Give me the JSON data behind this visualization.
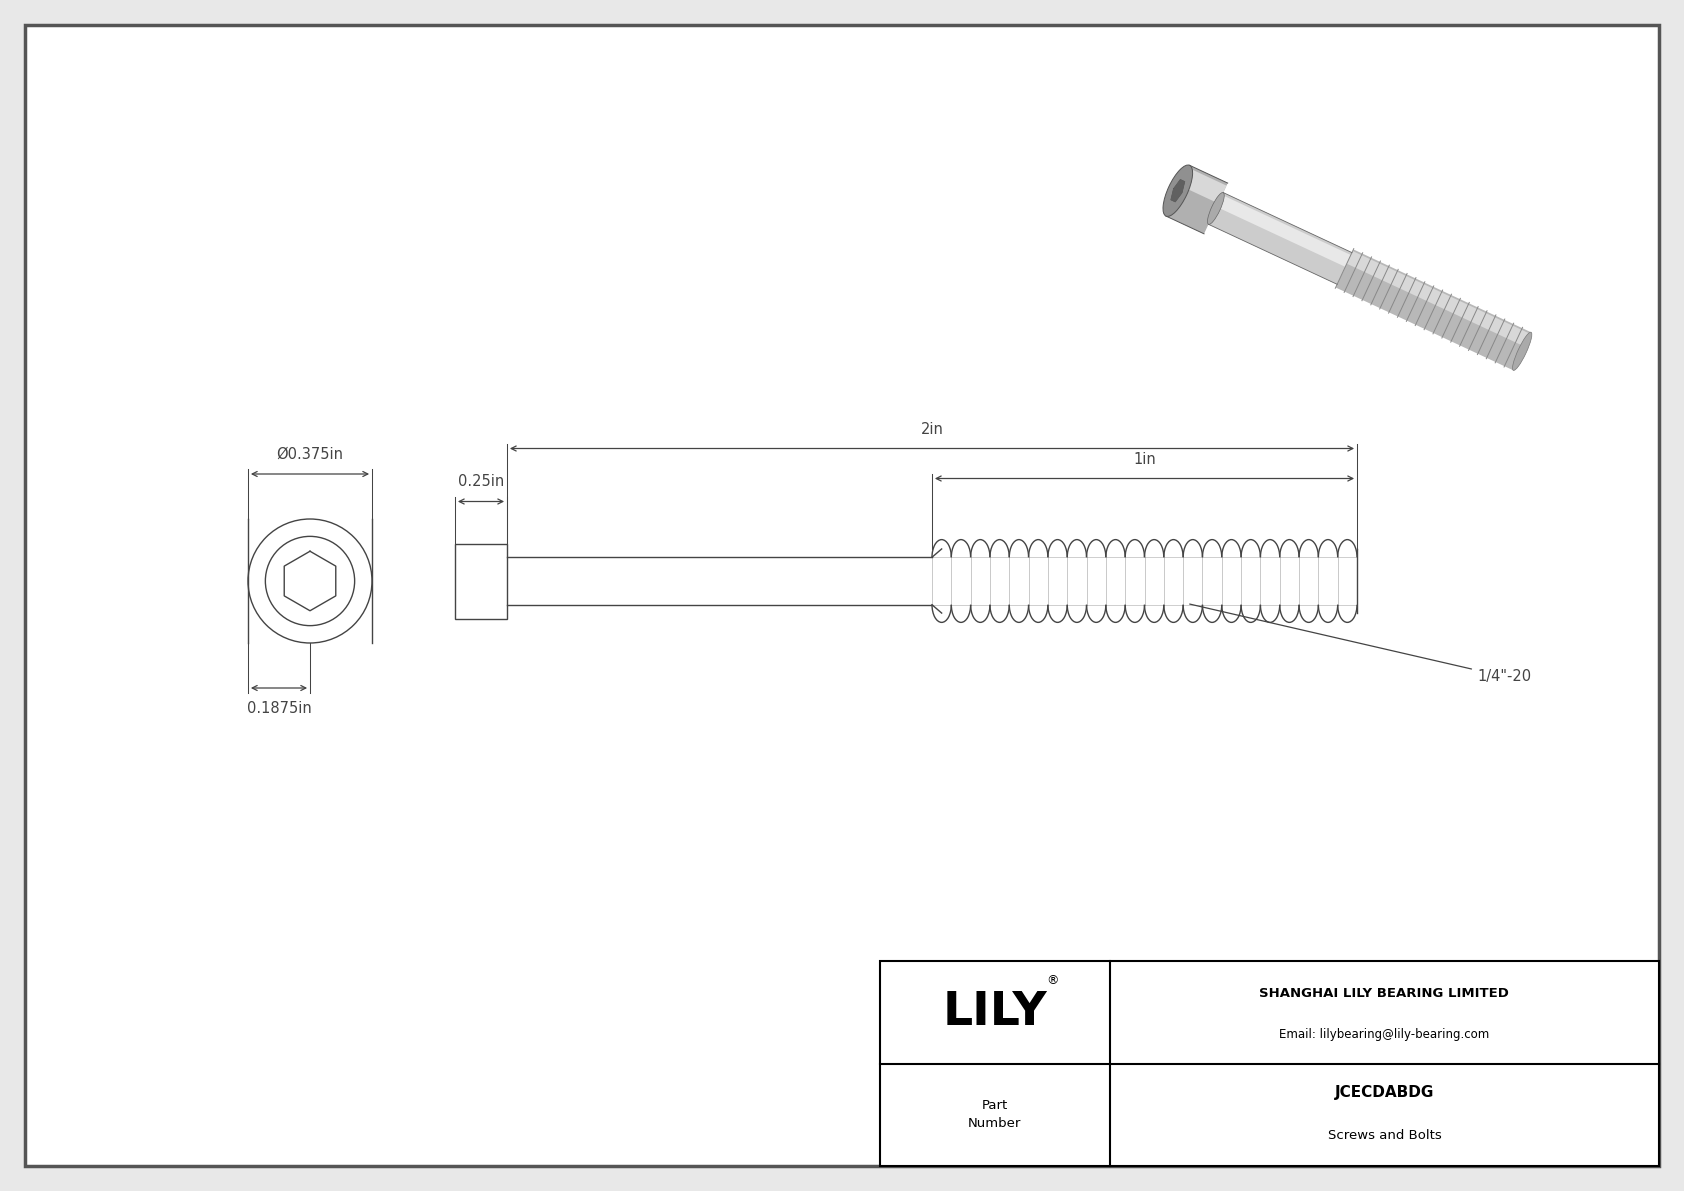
{
  "bg_color": "#e8e8e8",
  "drawing_bg": "#ffffff",
  "border_color": "#555555",
  "line_color": "#444444",
  "title": "JCECDABDG",
  "subtitle": "Screws and Bolts",
  "company": "SHANGHAI LILY BEARING LIMITED",
  "email": "Email: lilybearing@lily-bearing.com",
  "part_label": "Part\nNumber",
  "logo": "LILY",
  "logo_reg": "®",
  "dim_head_diameter": "Ø0.375in",
  "dim_head_height": "0.1875in",
  "dim_total_length": "2in",
  "dim_head_length": "0.25in",
  "dim_thread_length": "1in",
  "dim_thread_label": "1/4\"-20",
  "font_size_dim": 10.5,
  "font_size_title": 13,
  "font_size_logo": 34
}
